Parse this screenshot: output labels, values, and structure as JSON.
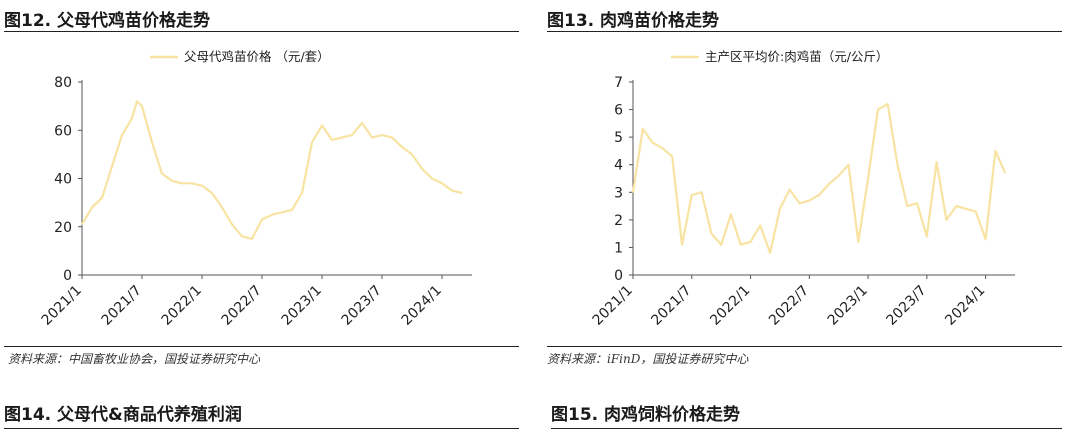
{
  "panels": [
    {
      "title": "图12. 父母代鸡苗价格走势",
      "source": "资料来源：中国畜牧业协会，国投证券研究中心"
    },
    {
      "title": "图13. 肉鸡苗价格走势",
      "source": "资料来源：iFinD，国投证券研究中心"
    },
    {
      "title": "图14. 父母代&商品代养殖利润"
    },
    {
      "title": "图15. 肉鸡饲料价格走势"
    }
  ],
  "chart_data": [
    {
      "type": "line",
      "title": "",
      "xlabel": "",
      "ylabel": "",
      "ylim": [
        0,
        80
      ],
      "yticks": [
        0,
        20,
        40,
        60,
        80
      ],
      "x_tick_labels": [
        "2021/1",
        "2021/7",
        "2022/1",
        "2022/7",
        "2023/1",
        "2023/7",
        "2024/1"
      ],
      "legend_position": "top-center",
      "grid": false,
      "series": [
        {
          "name": "父母代鸡苗价格 （元/套）",
          "color": "#f8e3a2",
          "x": [
            "2021/1",
            "2021/2",
            "2021/3",
            "2021/4",
            "2021/5",
            "2021/6",
            "2021/6",
            "2021/7",
            "2021/8",
            "2021/9",
            "2021/10",
            "2021/11",
            "2021/12",
            "2022/1",
            "2022/2",
            "2022/3",
            "2022/4",
            "2022/5",
            "2022/6",
            "2022/7",
            "2022/8",
            "2022/9",
            "2022/10",
            "2022/11",
            "2022/12",
            "2023/1",
            "2023/2",
            "2023/3",
            "2023/4",
            "2023/5",
            "2023/6",
            "2023/7",
            "2023/8",
            "2023/9",
            "2023/10",
            "2023/11",
            "2023/12",
            "2024/1",
            "2024/2",
            "2024/3"
          ],
          "values": [
            21,
            28,
            32,
            45,
            58,
            65,
            72,
            70,
            55,
            42,
            39,
            38,
            38,
            37,
            34,
            28,
            21,
            16,
            15,
            23,
            25,
            26,
            27,
            34,
            55,
            62,
            56,
            57,
            58,
            63,
            57,
            58,
            57,
            53,
            50,
            44,
            40,
            38,
            35,
            34
          ]
        }
      ]
    },
    {
      "type": "line",
      "title": "",
      "xlabel": "",
      "ylabel": "",
      "ylim": [
        0,
        7
      ],
      "yticks": [
        0,
        1,
        2,
        3,
        4,
        5,
        6,
        7
      ],
      "x_tick_labels": [
        "2021/1",
        "2021/7",
        "2022/1",
        "2022/7",
        "2023/1",
        "2023/7",
        "2024/1"
      ],
      "legend_position": "top-center",
      "grid": false,
      "series": [
        {
          "name": "主产区平均价:肉鸡苗（元/公斤）",
          "color": "#f8e3a2",
          "x": [
            "2021/1",
            "2021/2",
            "2021/3",
            "2021/4",
            "2021/5",
            "2021/6",
            "2021/7",
            "2021/8",
            "2021/9",
            "2021/10",
            "2021/11",
            "2021/12",
            "2022/1",
            "2022/2",
            "2022/3",
            "2022/4",
            "2022/5",
            "2022/6",
            "2022/7",
            "2022/8",
            "2022/9",
            "2022/10",
            "2022/11",
            "2022/12",
            "2023/1",
            "2023/2",
            "2023/3",
            "2023/4",
            "2023/5",
            "2023/6",
            "2023/7",
            "2023/8",
            "2023/9",
            "2023/10",
            "2023/11",
            "2023/12",
            "2024/1",
            "2024/2",
            "2024/3"
          ],
          "values": [
            3.0,
            5.3,
            4.8,
            4.6,
            4.3,
            1.1,
            2.9,
            3.0,
            1.5,
            1.1,
            2.2,
            1.1,
            1.2,
            1.8,
            0.8,
            2.4,
            3.1,
            2.6,
            2.7,
            2.9,
            3.3,
            3.6,
            4.0,
            1.2,
            3.5,
            6.0,
            6.2,
            4.0,
            2.5,
            2.6,
            1.4,
            4.1,
            2.0,
            2.5,
            2.4,
            2.3,
            1.3,
            4.5,
            3.7
          ]
        }
      ]
    }
  ]
}
